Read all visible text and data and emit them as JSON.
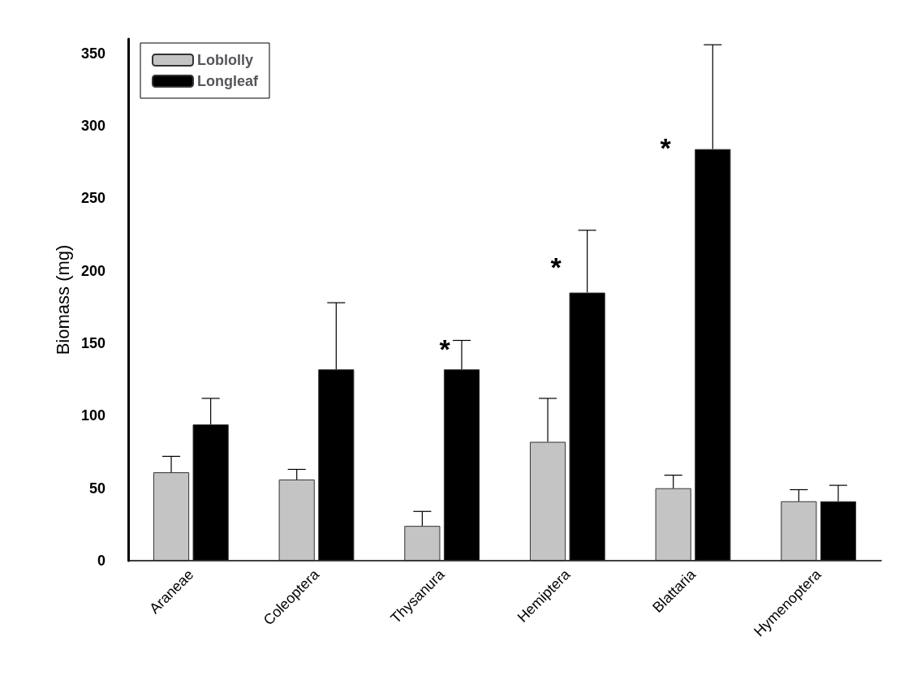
{
  "chart_data": {
    "type": "bar",
    "ylabel": "Biomass (mg)",
    "categories": [
      "Araneae",
      "Coleoptera",
      "Thysanura",
      "Hemiptera",
      "Blattaria",
      "Hymenoptera"
    ],
    "series": [
      {
        "name": "Loblolly",
        "color": "#c4c4c4",
        "values": [
          61,
          56,
          24,
          82,
          50,
          41
        ],
        "errors": [
          [
            61,
            72
          ],
          [
            56,
            63
          ],
          [
            24,
            34
          ],
          [
            82,
            112
          ],
          [
            50,
            59
          ],
          [
            41,
            49
          ]
        ]
      },
      {
        "name": "Longleaf",
        "color": "#000000",
        "values": [
          94,
          132,
          132,
          185,
          284,
          41
        ],
        "errors": [
          [
            94,
            112
          ],
          [
            132,
            178
          ],
          [
            132,
            152
          ],
          [
            185,
            228
          ],
          [
            284,
            356
          ],
          [
            41,
            52
          ]
        ]
      }
    ],
    "annotations": [
      "*",
      "*",
      "*"
    ],
    "ylim": [
      0,
      360
    ],
    "yticks": [
      0,
      50,
      100,
      150,
      200,
      250,
      300,
      350
    ],
    "grid": false,
    "legend": "top left"
  }
}
